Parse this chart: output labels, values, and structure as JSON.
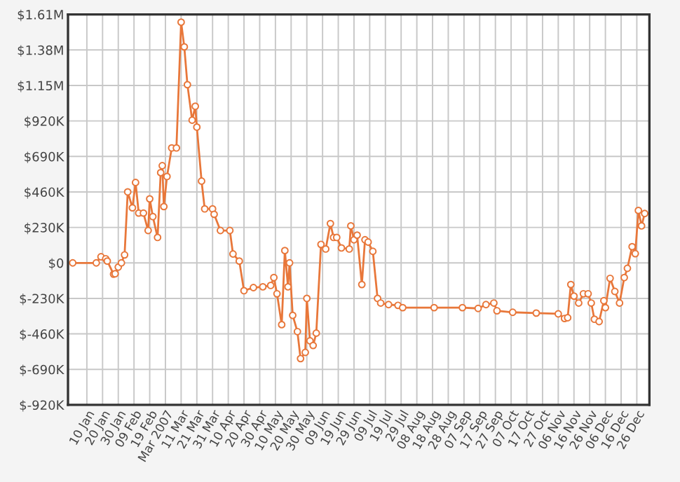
{
  "chart_data": {
    "type": "line",
    "x": [
      "2007-01-01",
      "2007-01-16",
      "2007-01-19",
      "2007-01-22",
      "2007-01-23",
      "2007-01-27",
      "2007-01-28",
      "2007-01-30",
      "2007-02-01",
      "2007-02-03",
      "2007-02-05",
      "2007-02-08",
      "2007-02-10",
      "2007-02-12",
      "2007-02-15",
      "2007-02-18",
      "2007-02-19",
      "2007-02-21",
      "2007-02-24",
      "2007-02-26",
      "2007-02-27",
      "2007-02-28",
      "2007-03-02",
      "2007-03-05",
      "2007-03-08",
      "2007-03-11",
      "2007-03-13",
      "2007-03-15",
      "2007-03-18",
      "2007-03-20",
      "2007-03-21",
      "2007-03-24",
      "2007-03-26",
      "2007-03-31",
      "2007-04-01",
      "2007-04-05",
      "2007-04-11",
      "2007-04-13",
      "2007-04-17",
      "2007-04-20",
      "2007-04-26",
      "2007-05-02",
      "2007-05-07",
      "2007-05-09",
      "2007-05-11",
      "2007-05-14",
      "2007-05-16",
      "2007-05-18",
      "2007-05-19",
      "2007-05-21",
      "2007-05-24",
      "2007-05-26",
      "2007-05-29",
      "2007-05-30",
      "2007-06-01",
      "2007-06-03",
      "2007-06-05",
      "2007-06-08",
      "2007-06-11",
      "2007-06-14",
      "2007-06-16",
      "2007-06-18",
      "2007-06-21",
      "2007-06-26",
      "2007-06-27",
      "2007-06-29",
      "2007-07-01",
      "2007-07-04",
      "2007-07-06",
      "2007-07-08",
      "2007-07-11",
      "2007-07-14",
      "2007-07-16",
      "2007-07-21",
      "2007-07-27",
      "2007-07-30",
      "2007-08-19",
      "2007-09-06",
      "2007-09-16",
      "2007-09-21",
      "2007-09-26",
      "2007-09-28",
      "2007-10-08",
      "2007-10-23",
      "2007-11-06",
      "2007-11-10",
      "2007-11-12",
      "2007-11-14",
      "2007-11-16",
      "2007-11-19",
      "2007-11-22",
      "2007-11-25",
      "2007-11-27",
      "2007-11-29",
      "2007-12-02",
      "2007-12-05",
      "2007-12-06",
      "2007-12-09",
      "2007-12-12",
      "2007-12-15",
      "2007-12-18",
      "2007-12-20",
      "2007-12-23",
      "2007-12-25",
      "2007-12-27",
      "2007-12-29",
      "2007-12-31"
    ],
    "series": [
      {
        "color": "#e8773a",
        "values": [
          0,
          0,
          40000,
          27000,
          12000,
          -73000,
          -70000,
          -27000,
          0,
          52000,
          460000,
          357000,
          521000,
          323000,
          323000,
          210000,
          415000,
          300000,
          165000,
          585000,
          630000,
          365000,
          560000,
          745000,
          745000,
          1560000,
          1400000,
          1155000,
          925000,
          1015000,
          880000,
          530000,
          350000,
          350000,
          315000,
          210000,
          210000,
          58000,
          12000,
          -180000,
          -160000,
          -155000,
          -146000,
          -95000,
          -200000,
          -400000,
          80000,
          -155000,
          0,
          -340000,
          -445000,
          -620000,
          -580000,
          -230000,
          -505000,
          -535000,
          -455000,
          120000,
          90000,
          255000,
          165000,
          165000,
          97000,
          90000,
          240000,
          150000,
          180000,
          -140000,
          150000,
          135000,
          75000,
          -230000,
          -260000,
          -270000,
          -275000,
          -290000,
          -290000,
          -290000,
          -295000,
          -270000,
          -260000,
          -310000,
          -320000,
          -325000,
          -330000,
          -360000,
          -355000,
          -140000,
          -215000,
          -260000,
          -200000,
          -200000,
          -260000,
          -365000,
          -380000,
          -245000,
          -290000,
          -100000,
          -185000,
          -260000,
          -95000,
          -35000,
          105000,
          60000,
          340000,
          240000,
          320000
        ]
      }
    ],
    "xlim": [
      "2006-12-29",
      "2008-01-03"
    ],
    "xticks": [
      {
        "value": "2007-01-10",
        "label": "10 Jan"
      },
      {
        "value": "2007-01-20",
        "label": "20 Jan"
      },
      {
        "value": "2007-01-30",
        "label": "30 Jan"
      },
      {
        "value": "2007-02-09",
        "label": "09 Feb"
      },
      {
        "value": "2007-02-19",
        "label": "19 Feb"
      },
      {
        "value": "2007-03-01",
        "label": "Mar 2007"
      },
      {
        "value": "2007-03-11",
        "label": "11 Mar"
      },
      {
        "value": "2007-03-21",
        "label": "21 Mar"
      },
      {
        "value": "2007-03-31",
        "label": "31 Mar"
      },
      {
        "value": "2007-04-10",
        "label": "10 Apr"
      },
      {
        "value": "2007-04-20",
        "label": "20 Apr"
      },
      {
        "value": "2007-04-30",
        "label": "30 Apr"
      },
      {
        "value": "2007-05-10",
        "label": "10 May"
      },
      {
        "value": "2007-05-20",
        "label": "20 May"
      },
      {
        "value": "2007-05-30",
        "label": "30 May"
      },
      {
        "value": "2007-06-09",
        "label": "09 Jun"
      },
      {
        "value": "2007-06-19",
        "label": "19 Jun"
      },
      {
        "value": "2007-06-29",
        "label": "29 Jun"
      },
      {
        "value": "2007-07-09",
        "label": "09 Jul"
      },
      {
        "value": "2007-07-19",
        "label": "19 Jul"
      },
      {
        "value": "2007-07-29",
        "label": "29 Jul"
      },
      {
        "value": "2007-08-08",
        "label": "08 Aug"
      },
      {
        "value": "2007-08-18",
        "label": "18 Aug"
      },
      {
        "value": "2007-08-28",
        "label": "28 Aug"
      },
      {
        "value": "2007-09-07",
        "label": "07 Sep"
      },
      {
        "value": "2007-09-17",
        "label": "17 Sep"
      },
      {
        "value": "2007-09-27",
        "label": "27 Sep"
      },
      {
        "value": "2007-10-07",
        "label": "07 Oct"
      },
      {
        "value": "2007-10-17",
        "label": "17 Oct"
      },
      {
        "value": "2007-10-27",
        "label": "27 Oct"
      },
      {
        "value": "2007-11-06",
        "label": "06 Nov"
      },
      {
        "value": "2007-11-16",
        "label": "16 Nov"
      },
      {
        "value": "2007-11-26",
        "label": "26 Nov"
      },
      {
        "value": "2007-12-06",
        "label": "06 Dec"
      },
      {
        "value": "2007-12-16",
        "label": "16 Dec"
      },
      {
        "value": "2007-12-26",
        "label": "26 Dec"
      }
    ],
    "ylim": [
      -920000,
      1610000
    ],
    "yticks": [
      {
        "value": -920000,
        "label": "$-920K"
      },
      {
        "value": -690000,
        "label": "$-690K"
      },
      {
        "value": -460000,
        "label": "$-460K"
      },
      {
        "value": -230000,
        "label": "$-230K"
      },
      {
        "value": 0,
        "label": "$0"
      },
      {
        "value": 230000,
        "label": "$230K"
      },
      {
        "value": 460000,
        "label": "$460K"
      },
      {
        "value": 690000,
        "label": "$690K"
      },
      {
        "value": 920000,
        "label": "$920K"
      },
      {
        "value": 1150000,
        "label": "$1.15M"
      },
      {
        "value": 1380000,
        "label": "$1.38M"
      },
      {
        "value": 1610000,
        "label": "$1.61M"
      }
    ],
    "grid": true,
    "marker": "circle",
    "line_style": "solid"
  }
}
